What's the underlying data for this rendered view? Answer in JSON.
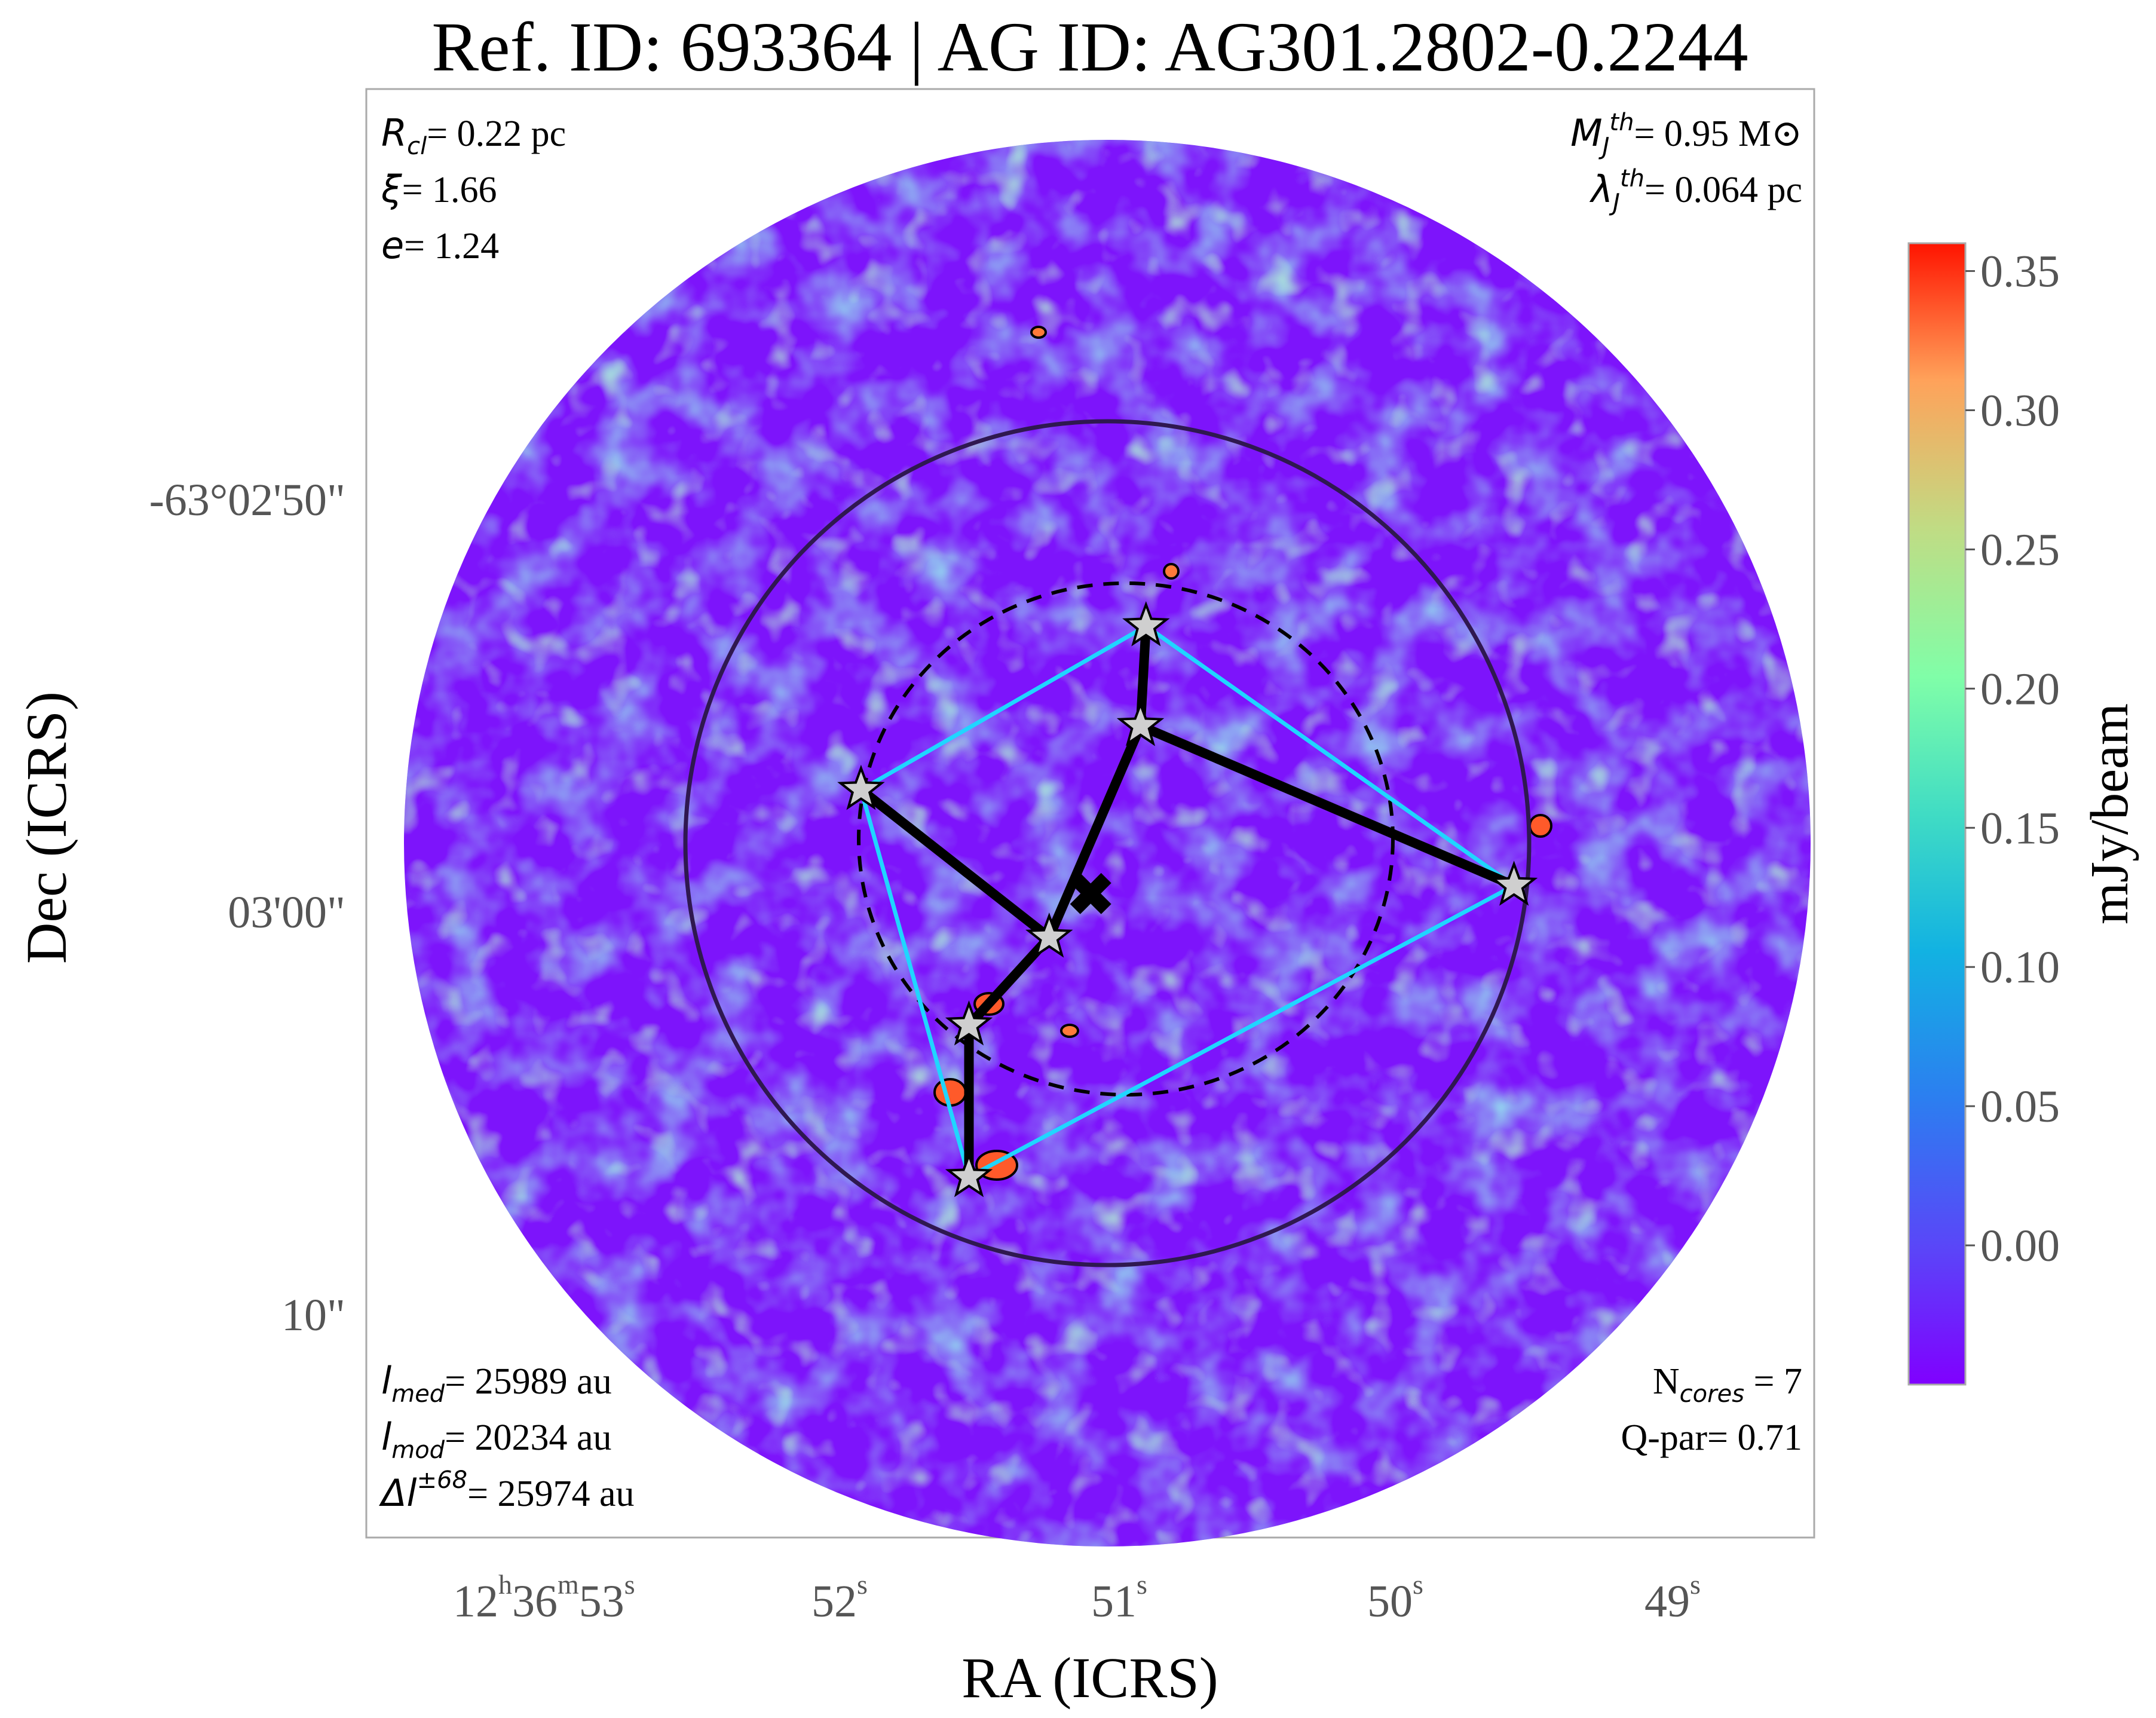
{
  "chart_data": {
    "type": "heatmap",
    "title": "Ref. ID: 693364 | AG ID: AG301.2802-0.2244",
    "xlabel": "RA (ICRS)",
    "ylabel": "Dec (ICRS)",
    "x_ticks": [
      {
        "h": "12",
        "hs": "h",
        "m": "36",
        "ms": "m",
        "s": "53",
        "ss": "s"
      },
      {
        "s": "52",
        "ss": "s"
      },
      {
        "s": "51",
        "ss": "s"
      },
      {
        "s": "50",
        "ss": "s"
      },
      {
        "s": "49",
        "ss": "s"
      }
    ],
    "y_ticks": [
      "-63°02'50\"",
      "03'00\"",
      "10\""
    ],
    "colorbar": {
      "label": "mJy/beam",
      "range": [
        -0.05,
        0.36
      ],
      "ticks": [
        "0.35",
        "0.30",
        "0.25",
        "0.20",
        "0.15",
        "0.10",
        "0.05",
        "0.00"
      ],
      "tick_values": [
        0.35,
        0.3,
        0.25,
        0.2,
        0.15,
        0.1,
        0.05,
        0.0
      ],
      "colormap": "rainbow"
    },
    "annotations": {
      "top_left": [
        {
          "sym": "R",
          "sub": "cl",
          "val": "= 0.22 pc"
        },
        {
          "sym": "ξ",
          "sub": "",
          "val": "= 1.66"
        },
        {
          "sym": "e",
          "sub": "",
          "val": "= 1.24"
        }
      ],
      "top_right": [
        {
          "sym": "M",
          "sub": "J",
          "sup": "th",
          "val": "= 0.95 M⊙"
        },
        {
          "sym": "λ",
          "sub": "J",
          "sup": "th",
          "val": "= 0.064 pc"
        }
      ],
      "bottom_left": [
        {
          "sym": "l",
          "sub": "med",
          "val": "= 25989 au"
        },
        {
          "sym": "l",
          "sub": "mod",
          "val": "= 20234 au"
        },
        {
          "sym": "Δl",
          "sup": "±68",
          "val": "= 25974 au"
        }
      ],
      "bottom_right": [
        "N",
        "cores",
        " = 7",
        "Q-par= 0.71"
      ]
    },
    "cores": [
      {
        "ra_s": 50.86,
        "dec_s": -53.2
      },
      {
        "ra_s": 50.88,
        "dec_s": -55.7
      },
      {
        "ra_s": 51.89,
        "dec_s": -57.3
      },
      {
        "ra_s": 49.53,
        "dec_s": -59.7
      },
      {
        "ra_s": 51.21,
        "dec_s": -61.0
      },
      {
        "ra_s": 51.5,
        "dec_s": -63.2
      },
      {
        "ra_s": 51.5,
        "dec_s": -67.0
      }
    ],
    "mst_edges": [
      [
        0,
        1
      ],
      [
        1,
        4
      ],
      [
        1,
        3
      ],
      [
        2,
        4
      ],
      [
        4,
        5
      ],
      [
        5,
        6
      ]
    ],
    "hull_edges": [
      [
        0,
        3
      ],
      [
        3,
        6
      ],
      [
        6,
        2
      ],
      [
        2,
        0
      ]
    ],
    "centroid": {
      "ra_s": 51.06,
      "dec_s": -59.9
    }
  }
}
